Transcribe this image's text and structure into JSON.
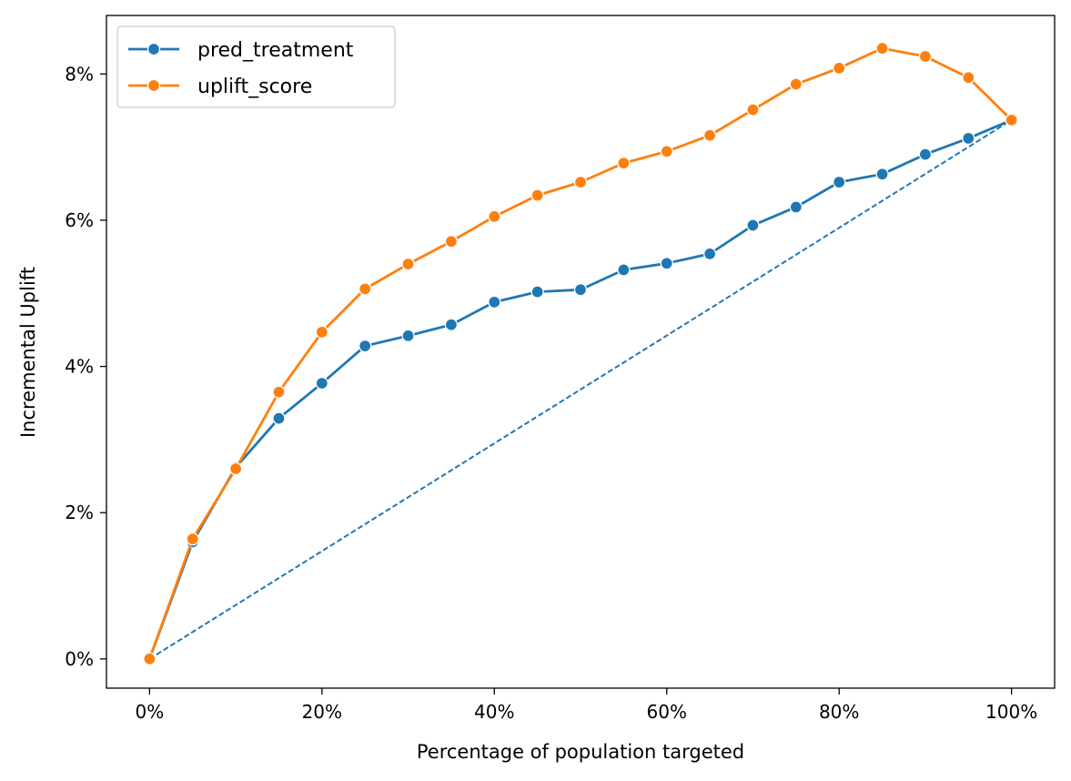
{
  "chart_data": {
    "type": "line",
    "title": "",
    "xlabel": "Percentage of population targeted",
    "ylabel": "Incremental Uplift",
    "x": [
      0,
      5,
      10,
      15,
      20,
      25,
      30,
      35,
      40,
      45,
      50,
      55,
      60,
      65,
      70,
      75,
      80,
      85,
      90,
      95,
      100
    ],
    "xlim": [
      -5,
      105
    ],
    "ylim": [
      -0.4,
      8.8
    ],
    "x_ticks": [
      0,
      20,
      40,
      60,
      80,
      100
    ],
    "x_tick_labels": [
      "0%",
      "20%",
      "40%",
      "60%",
      "80%",
      "100%"
    ],
    "y_ticks": [
      0,
      2,
      4,
      6,
      8
    ],
    "y_tick_labels": [
      "0%",
      "2%",
      "4%",
      "6%",
      "8%"
    ],
    "grid": false,
    "legend_position": "top-left",
    "series": [
      {
        "name": "pred_treatment",
        "color": "#1f77b4",
        "marker": "circle",
        "values": [
          0.0,
          1.6,
          2.62,
          3.29,
          3.77,
          4.28,
          4.42,
          4.57,
          4.88,
          5.02,
          5.05,
          5.32,
          5.41,
          5.54,
          5.93,
          6.18,
          6.52,
          6.63,
          6.9,
          7.12,
          7.37
        ]
      },
      {
        "name": "uplift_score",
        "color": "#ff7f0e",
        "marker": "circle",
        "values": [
          0.0,
          1.64,
          2.6,
          3.65,
          4.47,
          5.06,
          5.4,
          5.71,
          6.05,
          6.34,
          6.52,
          6.78,
          6.94,
          7.16,
          7.51,
          7.86,
          8.08,
          8.35,
          8.24,
          7.95,
          7.37
        ]
      }
    ],
    "baseline": {
      "style": "dashed",
      "color": "#1f77b4",
      "x": [
        0,
        100
      ],
      "values": [
        0.0,
        7.37
      ]
    }
  }
}
